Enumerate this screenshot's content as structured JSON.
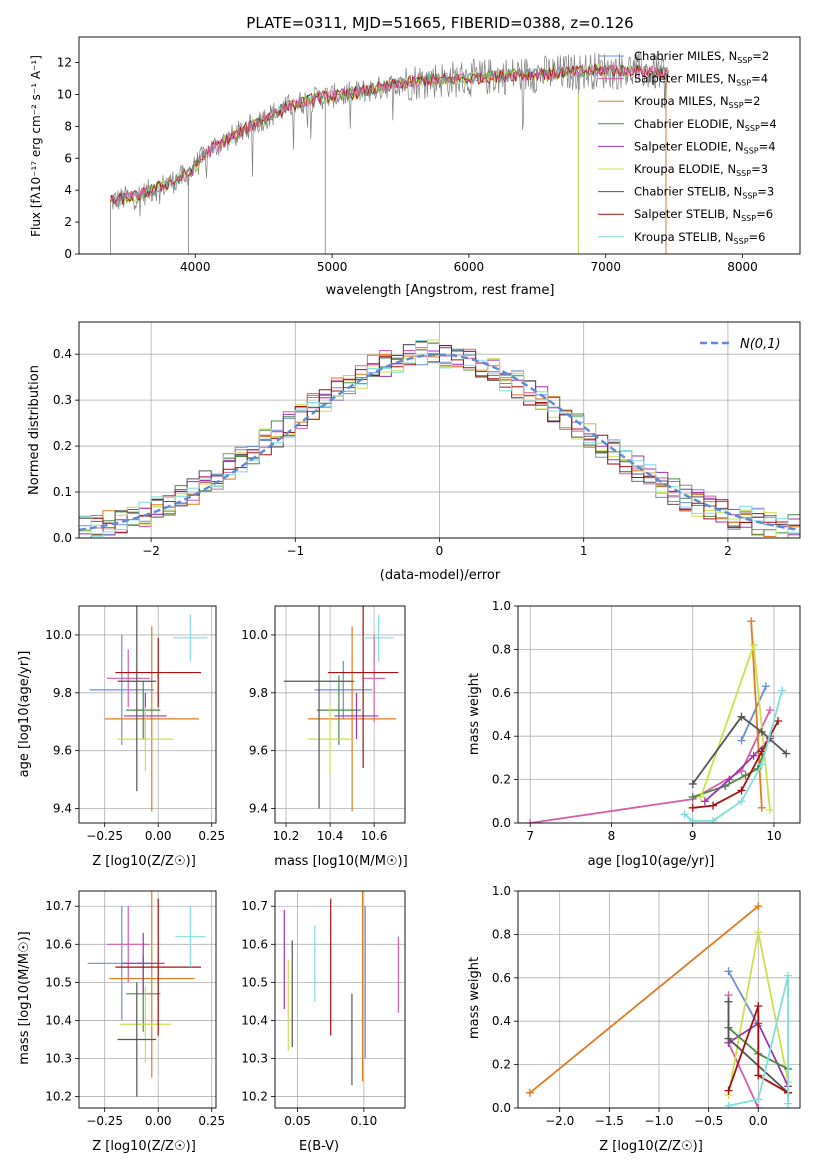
{
  "colors": {
    "chabrier_miles": "#6a8fd8",
    "salpeter_miles": "#d45fa8",
    "kroupa_miles": "#e07b20",
    "chabrier_elodie": "#4a8a4a",
    "salpeter_elodie": "#9a36b0",
    "kroupa_elodie": "#cde04a",
    "chabrier_stelib": "#555555",
    "salpeter_stelib": "#a81010",
    "kroupa_stelib": "#7fdede",
    "normal_fit": "#5b8ad6",
    "spec_gray": "#808080"
  },
  "chart_data": [
    {
      "id": "spectrum",
      "type": "line",
      "title": "PLATE=0311, MJD=51665, FIBERID=0388, z=0.126",
      "xlabel": "wavelength [Angstrom, rest frame]",
      "ylabel": "Flux [fλ10⁻¹⁷ erg cm⁻² s⁻¹ A⁻¹]",
      "xlim": [
        3150,
        8420
      ],
      "ylim": [
        0,
        13.6
      ],
      "xticks": [
        4000,
        5000,
        6000,
        7000,
        8000
      ],
      "yticks": [
        0,
        2,
        4,
        6,
        8,
        10,
        12
      ],
      "grid": false,
      "legend": "top-right",
      "legend_entries": [
        {
          "key": "chabrier_miles",
          "sub": "SSP",
          "n": "2",
          "label": "Chabrier MILES, N"
        },
        {
          "key": "salpeter_miles",
          "sub": "SSP",
          "n": "4",
          "label": "Salpeter MILES, N"
        },
        {
          "key": "kroupa_miles",
          "sub": "SSP",
          "n": "2",
          "label": "Kroupa MILES, N"
        },
        {
          "key": "chabrier_elodie",
          "sub": "SSP",
          "n": "4",
          "label": "Chabrier ELODIE, N"
        },
        {
          "key": "salpeter_elodie",
          "sub": "SSP",
          "n": "4",
          "label": "Salpeter ELODIE, N"
        },
        {
          "key": "kroupa_elodie",
          "sub": "SSP",
          "n": "3",
          "label": "Kroupa ELODIE, N"
        },
        {
          "key": "chabrier_stelib",
          "sub": "SSP",
          "n": "3",
          "label": "Chabrier STELIB, N"
        },
        {
          "key": "salpeter_stelib",
          "sub": "SSP",
          "n": "6",
          "label": "Salpeter STELIB, N"
        },
        {
          "key": "kroupa_stelib",
          "sub": "SSP",
          "n": "6",
          "label": "Kroupa STELIB, N"
        }
      ],
      "continuum": [
        [
          3380,
          3.3
        ],
        [
          3600,
          3.7
        ],
        [
          3800,
          4.4
        ],
        [
          3950,
          5.0
        ],
        [
          4100,
          6.5
        ],
        [
          4300,
          7.5
        ],
        [
          4500,
          8.5
        ],
        [
          4700,
          9.3
        ],
        [
          4900,
          9.8
        ],
        [
          5100,
          10.0
        ],
        [
          5300,
          10.3
        ],
        [
          5500,
          10.7
        ],
        [
          5700,
          10.9
        ],
        [
          6000,
          11.0
        ],
        [
          6300,
          11.2
        ],
        [
          6600,
          11.3
        ],
        [
          6900,
          11.5
        ],
        [
          7200,
          11.5
        ],
        [
          7500,
          11.3
        ]
      ],
      "spike_down": [
        [
          3380,
          0.0
        ],
        [
          3950,
          0.0
        ],
        [
          4950,
          0.0
        ],
        [
          6800,
          0.0
        ],
        [
          7440,
          0.0
        ]
      ]
    },
    {
      "id": "residuals",
      "type": "histogram",
      "xlabel": "(data-model)/error",
      "ylabel": "Normed distribution",
      "xlim": [
        -2.5,
        2.5
      ],
      "ylim": [
        0,
        0.47
      ],
      "xticks": [
        -2,
        -1,
        0,
        1,
        2
      ],
      "yticks": [
        0.0,
        0.1,
        0.2,
        0.3,
        0.4
      ],
      "grid": true,
      "legend": "top-right",
      "legend_label": "N(0,1)",
      "bin_width": 0.1,
      "profile": [
        0.022,
        0.025,
        0.03,
        0.035,
        0.04,
        0.055,
        0.065,
        0.075,
        0.09,
        0.1,
        0.12,
        0.135,
        0.155,
        0.17,
        0.19,
        0.21,
        0.225,
        0.245,
        0.265,
        0.285,
        0.3,
        0.32,
        0.335,
        0.355,
        0.37,
        0.38,
        0.39,
        0.395,
        0.4,
        0.405,
        0.4,
        0.395,
        0.385,
        0.375,
        0.365,
        0.35,
        0.335,
        0.315,
        0.3,
        0.28,
        0.26,
        0.24,
        0.22,
        0.2,
        0.185,
        0.165,
        0.15,
        0.13,
        0.115,
        0.1,
        0.085,
        0.075,
        0.065,
        0.055,
        0.045,
        0.04,
        0.035,
        0.03,
        0.025,
        0.022
      ]
    },
    {
      "id": "age_vs_Z",
      "type": "errorbar",
      "xlabel": "Z [log10(Z/Z☉)]",
      "ylabel": "age [log10(age/yr)]",
      "xlim": [
        -0.37,
        0.27
      ],
      "ylim": [
        9.35,
        10.1
      ],
      "xticks": [
        -0.25,
        0.0,
        0.25
      ],
      "yticks": [
        9.4,
        9.6,
        9.8,
        10.0
      ],
      "grid": true,
      "points": [
        {
          "key": "chabrier_miles",
          "x": -0.17,
          "xerr": 0.15,
          "y": 9.81,
          "yerr": 0.19
        },
        {
          "key": "salpeter_miles",
          "x": -0.14,
          "xerr": 0.1,
          "y": 9.85,
          "yerr": 0.1
        },
        {
          "key": "kroupa_miles",
          "x": -0.03,
          "xerr": 0.22,
          "y": 9.71,
          "yerr": 0.32
        },
        {
          "key": "chabrier_elodie",
          "x": -0.07,
          "xerr": 0.08,
          "y": 9.74,
          "yerr": 0.1
        },
        {
          "key": "salpeter_elodie",
          "x": -0.06,
          "xerr": 0.1,
          "y": 9.72,
          "yerr": 0.08
        },
        {
          "key": "kroupa_elodie",
          "x": -0.06,
          "xerr": 0.13,
          "y": 9.64,
          "yerr": 0.11
        },
        {
          "key": "chabrier_stelib",
          "x": -0.1,
          "xerr": 0.09,
          "y": 9.84,
          "yerr": 0.38
        },
        {
          "key": "salpeter_stelib",
          "x": 0.0,
          "xerr": 0.2,
          "y": 9.87,
          "yerr": 0.12
        },
        {
          "key": "kroupa_stelib",
          "x": 0.15,
          "xerr": 0.08,
          "y": 9.99,
          "yerr": 0.08
        }
      ]
    },
    {
      "id": "age_vs_mass",
      "type": "errorbar",
      "xlabel": "mass [log10(M/M☉)]",
      "ylabel": "",
      "xlim": [
        10.15,
        10.74
      ],
      "ylim": [
        9.35,
        10.1
      ],
      "xticks": [
        10.2,
        10.4,
        10.6
      ],
      "yticks": [
        9.4,
        9.6,
        9.8,
        10.0
      ],
      "grid": true,
      "points": [
        {
          "key": "chabrier_miles",
          "x": 10.46,
          "xerr": 0.13,
          "y": 9.81,
          "yerr": 0.1
        },
        {
          "key": "salpeter_miles",
          "x": 10.6,
          "xerr": 0.05,
          "y": 9.85,
          "yerr": 0.15
        },
        {
          "key": "kroupa_miles",
          "x": 10.5,
          "xerr": 0.2,
          "y": 9.71,
          "yerr": 0.32
        },
        {
          "key": "chabrier_elodie",
          "x": 10.44,
          "xerr": 0.1,
          "y": 9.74,
          "yerr": 0.12
        },
        {
          "key": "salpeter_elodie",
          "x": 10.52,
          "xerr": 0.1,
          "y": 9.72,
          "yerr": 0.08
        },
        {
          "key": "kroupa_elodie",
          "x": 10.4,
          "xerr": 0.1,
          "y": 9.64,
          "yerr": 0.12
        },
        {
          "key": "chabrier_stelib",
          "x": 10.35,
          "xerr": 0.16,
          "y": 9.84,
          "yerr": 0.44
        },
        {
          "key": "salpeter_stelib",
          "x": 10.55,
          "xerr": 0.16,
          "y": 9.87,
          "yerr": 0.33
        },
        {
          "key": "kroupa_stelib",
          "x": 10.62,
          "xerr": 0.07,
          "y": 9.99,
          "yerr": 0.08
        }
      ]
    },
    {
      "id": "mass_weight_vs_age",
      "type": "line",
      "xlabel": "age [log10(age/yr)]",
      "ylabel": "mass weight",
      "xlim": [
        6.85,
        10.32
      ],
      "ylim": [
        0,
        1.0
      ],
      "xticks": [
        7,
        8,
        9,
        10
      ],
      "yticks": [
        0.0,
        0.2,
        0.4,
        0.6,
        0.8,
        1.0
      ],
      "grid": true,
      "series": [
        {
          "key": "chabrier_miles",
          "points": [
            [
              9.6,
              0.38
            ],
            [
              9.9,
              0.63
            ]
          ]
        },
        {
          "key": "salpeter_miles",
          "points": [
            [
              7.0,
              0.0
            ],
            [
              9.0,
              0.11
            ],
            [
              9.6,
              0.24
            ],
            [
              9.95,
              0.52
            ]
          ]
        },
        {
          "key": "kroupa_miles",
          "points": [
            [
              9.72,
              0.93
            ],
            [
              9.85,
              0.07
            ]
          ]
        },
        {
          "key": "chabrier_elodie",
          "points": [
            [
              9.0,
              0.12
            ],
            [
              9.4,
              0.17
            ],
            [
              9.65,
              0.22
            ],
            [
              9.8,
              0.25
            ],
            [
              9.95,
              0.4
            ]
          ]
        },
        {
          "key": "salpeter_elodie",
          "points": [
            [
              9.15,
              0.1
            ],
            [
              9.45,
              0.2
            ],
            [
              9.75,
              0.31
            ],
            [
              9.95,
              0.39
            ]
          ]
        },
        {
          "key": "kroupa_elodie",
          "points": [
            [
              9.1,
              0.12
            ],
            [
              9.75,
              0.82
            ],
            [
              9.95,
              0.06
            ]
          ]
        },
        {
          "key": "chabrier_stelib",
          "points": [
            [
              9.0,
              0.18
            ],
            [
              9.6,
              0.49
            ],
            [
              9.85,
              0.42
            ],
            [
              10.15,
              0.32
            ]
          ]
        },
        {
          "key": "salpeter_stelib",
          "points": [
            [
              9.0,
              0.07
            ],
            [
              9.25,
              0.08
            ],
            [
              9.6,
              0.15
            ],
            [
              9.85,
              0.33
            ],
            [
              10.05,
              0.47
            ]
          ]
        },
        {
          "key": "kroupa_stelib",
          "points": [
            [
              8.9,
              0.04
            ],
            [
              9.0,
              0.01
            ],
            [
              9.25,
              0.01
            ],
            [
              9.6,
              0.1
            ],
            [
              9.85,
              0.27
            ],
            [
              10.1,
              0.61
            ]
          ]
        }
      ]
    },
    {
      "id": "mass_vs_Z",
      "type": "errorbar",
      "xlabel": "Z [log10(Z/Z☉)]",
      "ylabel": "mass [log10(M/M☉)]",
      "xlim": [
        -0.37,
        0.27
      ],
      "ylim": [
        10.17,
        10.74
      ],
      "xticks": [
        -0.25,
        0.0,
        0.25
      ],
      "yticks": [
        10.2,
        10.3,
        10.4,
        10.5,
        10.6,
        10.7
      ],
      "grid": true,
      "points": [
        {
          "key": "chabrier_miles",
          "x": -0.17,
          "xerr": 0.16,
          "y": 10.55,
          "yerr": 0.15
        },
        {
          "key": "salpeter_miles",
          "x": -0.14,
          "xerr": 0.1,
          "y": 10.6,
          "yerr": 0.1
        },
        {
          "key": "kroupa_miles",
          "x": -0.03,
          "xerr": 0.2,
          "y": 10.51,
          "yerr": 0.26
        },
        {
          "key": "chabrier_elodie",
          "x": -0.07,
          "xerr": 0.08,
          "y": 10.47,
          "yerr": 0.1
        },
        {
          "key": "salpeter_elodie",
          "x": -0.07,
          "xerr": 0.1,
          "y": 10.55,
          "yerr": 0.08
        },
        {
          "key": "kroupa_elodie",
          "x": -0.06,
          "xerr": 0.12,
          "y": 10.39,
          "yerr": 0.1
        },
        {
          "key": "chabrier_stelib",
          "x": -0.1,
          "xerr": 0.09,
          "y": 10.35,
          "yerr": 0.15
        },
        {
          "key": "salpeter_stelib",
          "x": 0.0,
          "xerr": 0.2,
          "y": 10.54,
          "yerr": 0.18
        },
        {
          "key": "kroupa_stelib",
          "x": 0.15,
          "xerr": 0.07,
          "y": 10.62,
          "yerr": 0.08
        }
      ]
    },
    {
      "id": "mass_vs_ebv",
      "type": "errorbar",
      "xlabel": "E(B-V)",
      "ylabel": "",
      "xlim": [
        0.033,
        0.131
      ],
      "ylim": [
        10.17,
        10.74
      ],
      "xticks": [
        0.05,
        0.1
      ],
      "yticks": [
        10.2,
        10.3,
        10.4,
        10.5,
        10.6,
        10.7
      ],
      "grid": true,
      "points": [
        {
          "key": "salpeter_elodie",
          "x": 0.04,
          "xerr": 0.0,
          "y": 10.56,
          "yerr": 0.13
        },
        {
          "key": "kroupa_elodie",
          "x": 0.043,
          "xerr": 0.0,
          "y": 10.44,
          "yerr": 0.12
        },
        {
          "key": "chabrier_stelib",
          "x": 0.046,
          "xerr": 0.0,
          "y": 10.47,
          "yerr": 0.14
        },
        {
          "key": "kroupa_stelib",
          "x": 0.063,
          "xerr": 0.0,
          "y": 10.55,
          "yerr": 0.1
        },
        {
          "key": "salpeter_stelib",
          "x": 0.075,
          "xerr": 0.0,
          "y": 10.54,
          "yerr": 0.18
        },
        {
          "key": "chabrier_stelib",
          "x": 0.091,
          "xerr": 0.0,
          "y": 10.35,
          "yerr": 0.12
        },
        {
          "key": "kroupa_miles",
          "x": 0.099,
          "xerr": 0.0,
          "y": 10.5,
          "yerr": 0.26
        },
        {
          "key": "chabrier_miles",
          "x": 0.101,
          "xerr": 0.0,
          "y": 10.5,
          "yerr": 0.2
        },
        {
          "key": "salpeter_miles",
          "x": 0.126,
          "xerr": 0.0,
          "y": 10.52,
          "yerr": 0.1
        }
      ]
    },
    {
      "id": "mass_weight_vs_Z",
      "type": "line",
      "xlabel": "Z [log10(Z/Z☉)]",
      "ylabel": "mass weight",
      "xlim": [
        -2.42,
        0.42
      ],
      "ylim": [
        0,
        1.0
      ],
      "xticks": [
        -2.0,
        -1.5,
        -1.0,
        -0.5,
        0.0
      ],
      "yticks": [
        0.0,
        0.2,
        0.4,
        0.6,
        0.8,
        1.0
      ],
      "grid": true,
      "series": [
        {
          "key": "kroupa_miles",
          "points": [
            [
              -2.3,
              0.07
            ],
            [
              0.0,
              0.93
            ]
          ]
        },
        {
          "key": "chabrier_miles",
          "points": [
            [
              -0.3,
              0.63
            ],
            [
              0.0,
              0.38
            ]
          ]
        },
        {
          "key": "salpeter_miles",
          "points": [
            [
              -0.3,
              0.52
            ],
            [
              -0.3,
              0.3
            ],
            [
              0.0,
              0.0
            ]
          ]
        },
        {
          "key": "kroupa_elodie",
          "points": [
            [
              -0.3,
              0.06
            ],
            [
              0.0,
              0.81
            ],
            [
              0.3,
              0.12
            ]
          ]
        },
        {
          "key": "salpeter_elodie",
          "points": [
            [
              -0.3,
              0.3
            ],
            [
              0.0,
              0.39
            ],
            [
              0.3,
              0.1
            ]
          ]
        },
        {
          "key": "chabrier_elodie",
          "points": [
            [
              -0.3,
              0.37
            ],
            [
              0.0,
              0.25
            ],
            [
              0.3,
              0.18
            ]
          ]
        },
        {
          "key": "chabrier_stelib",
          "points": [
            [
              -0.3,
              0.49
            ],
            [
              -0.3,
              0.32
            ],
            [
              0.3,
              0.07
            ]
          ]
        },
        {
          "key": "salpeter_stelib",
          "points": [
            [
              -0.3,
              0.08
            ],
            [
              0.0,
              0.47
            ],
            [
              0.0,
              0.15
            ],
            [
              0.3,
              0.07
            ]
          ]
        },
        {
          "key": "kroupa_stelib",
          "points": [
            [
              -0.3,
              0.01
            ],
            [
              0.0,
              0.04
            ],
            [
              0.3,
              0.61
            ],
            [
              0.3,
              0.02
            ]
          ]
        }
      ]
    }
  ]
}
